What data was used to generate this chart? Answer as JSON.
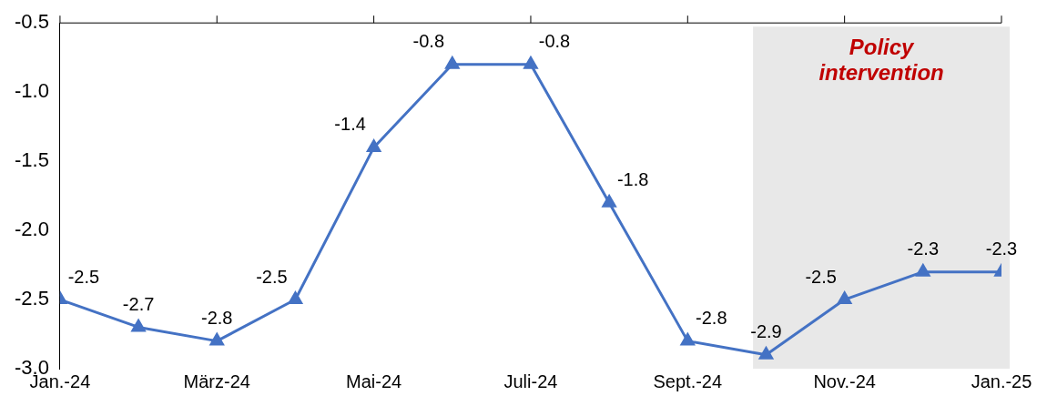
{
  "chart_data": {
    "type": "line",
    "x": [
      "2024-01",
      "2024-02",
      "2024-03",
      "2024-04",
      "2024-05",
      "2024-06",
      "2024-07",
      "2024-08",
      "2024-09",
      "2024-10",
      "2024-11",
      "2024-12",
      "2025-01"
    ],
    "series": [
      {
        "color": "#4472c4",
        "values": [
          -2.5,
          -2.7,
          -2.8,
          -2.5,
          -1.4,
          -0.8,
          -0.8,
          -1.8,
          -2.8,
          -2.9,
          -2.5,
          -2.3,
          -2.3
        ]
      }
    ],
    "xlim": [
      "2024-01",
      "2025-01"
    ],
    "xticks": [
      {
        "value": "2024-01",
        "label": "Jan.-24"
      },
      {
        "value": "2024-03",
        "label": "März-24"
      },
      {
        "value": "2024-05",
        "label": "Mai-24"
      },
      {
        "value": "2024-07",
        "label": "Juli-24"
      },
      {
        "value": "2024-09",
        "label": "Sept.-24"
      },
      {
        "value": "2024-11",
        "label": "Nov.-24"
      },
      {
        "value": "2025-01",
        "label": "Jan.-25"
      }
    ],
    "ylim": [
      -3,
      -0.5
    ],
    "yticks": [
      {
        "value": -3,
        "label": "-3.0"
      },
      -2.5,
      {
        "value": -2,
        "label": "-2.0"
      },
      -1.5,
      {
        "value": -1,
        "label": "-1.0"
      },
      -0.5
    ],
    "bands": [
      {
        "axis": "x",
        "from": "2024-09-26",
        "to": "2025-01",
        "label": "Policy intervention",
        "color": "#e8e8e8"
      }
    ],
    "data_labels": true,
    "grid": false,
    "legend": false,
    "marker": "triangle",
    "line_style": "solid"
  }
}
